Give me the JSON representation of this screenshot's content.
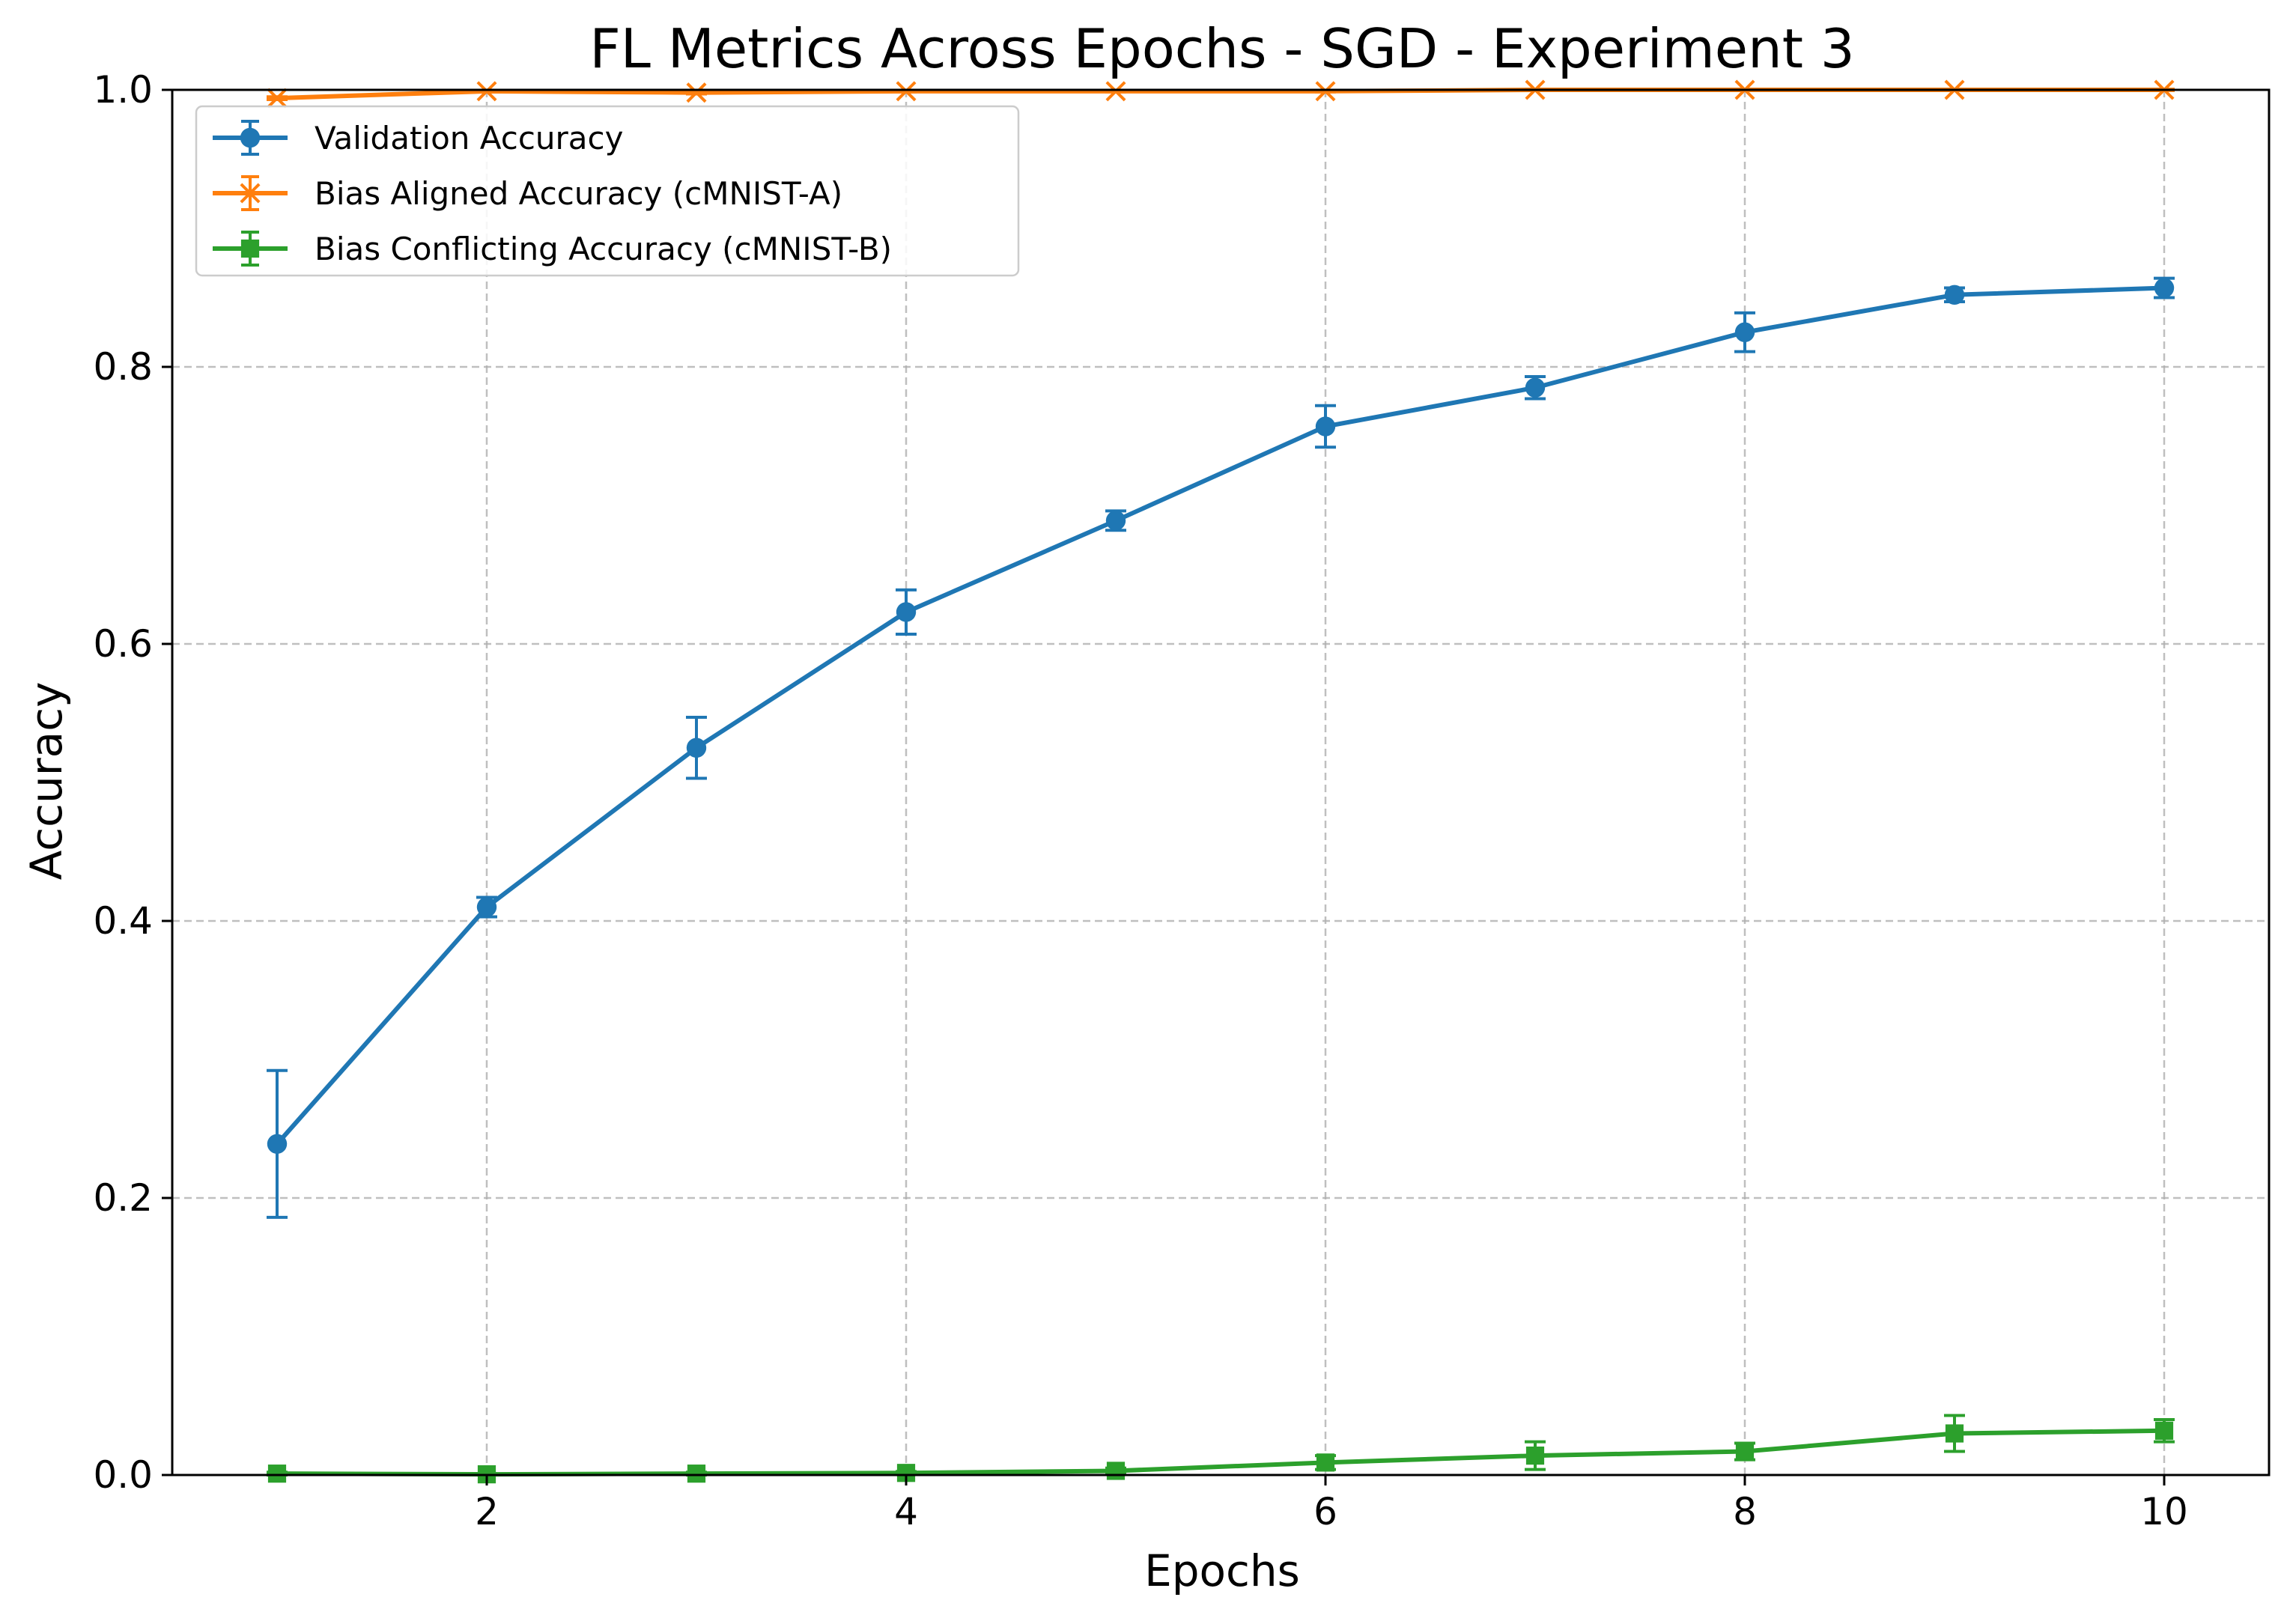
{
  "chart_data": {
    "type": "line",
    "title": "FL Metrics Across Epochs - SGD - Experiment 3",
    "xlabel": "Epochs",
    "ylabel": "Accuracy",
    "xlim": [
      0.5,
      10.5
    ],
    "ylim": [
      0.0,
      1.0
    ],
    "xticks": [
      2,
      4,
      6,
      8,
      10
    ],
    "xtick_labels": [
      "2",
      "4",
      "6",
      "8",
      "10"
    ],
    "yticks": [
      0.0,
      0.2,
      0.4,
      0.6,
      0.8,
      1.0
    ],
    "ytick_labels": [
      "0.0",
      "0.2",
      "0.4",
      "0.6",
      "0.8",
      "1.0"
    ],
    "grid": true,
    "legend_position": "top-left",
    "x": [
      1,
      2,
      3,
      4,
      5,
      6,
      7,
      8,
      9,
      10
    ],
    "series": [
      {
        "name": "Validation Accuracy",
        "color": "#1f77b4",
        "marker": "circle",
        "values": [
          0.239,
          0.41,
          0.525,
          0.623,
          0.689,
          0.757,
          0.785,
          0.825,
          0.852,
          0.857
        ],
        "errors": [
          0.053,
          0.007,
          0.022,
          0.016,
          0.007,
          0.015,
          0.008,
          0.014,
          0.005,
          0.007
        ]
      },
      {
        "name": "Bias Aligned Accuracy (cMNIST-A)",
        "color": "#ff7f0e",
        "marker": "x",
        "values": [
          0.994,
          0.999,
          0.998,
          0.999,
          0.999,
          0.999,
          1.0,
          1.0,
          1.0,
          1.0
        ],
        "errors": [
          0.001,
          0.0005,
          0.001,
          0.0005,
          0.0005,
          0.0005,
          0.0005,
          0.0005,
          0.0005,
          0.0005
        ]
      },
      {
        "name": "Bias Conflicting Accuracy (cMNIST-B)",
        "color": "#2ca02c",
        "marker": "square",
        "values": [
          0.001,
          0.0005,
          0.001,
          0.0015,
          0.003,
          0.009,
          0.014,
          0.017,
          0.03,
          0.032
        ],
        "errors": [
          0.001,
          0.0005,
          0.001,
          0.001,
          0.002,
          0.005,
          0.01,
          0.006,
          0.013,
          0.008
        ]
      }
    ]
  }
}
